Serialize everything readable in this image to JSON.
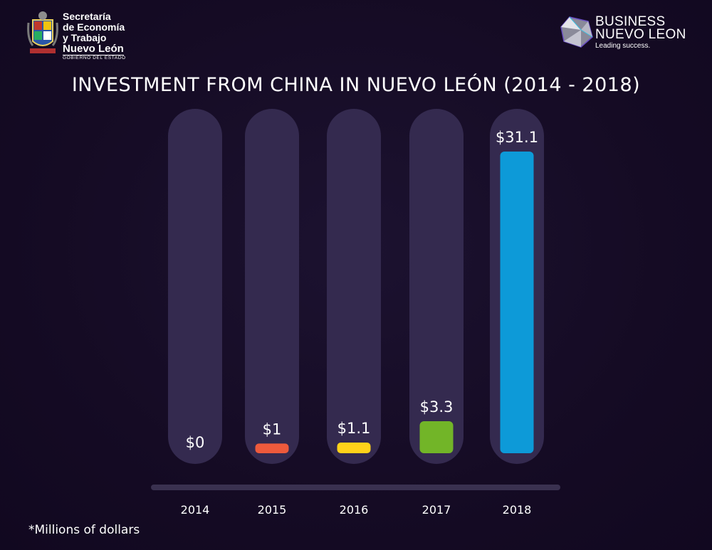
{
  "header": {
    "left_logo": {
      "line1": "Secretaría",
      "line2": "de Economía",
      "line3": "y Trabajo",
      "line4": "Nuevo León",
      "line5": "GOBIERNO DEL ESTADO"
    },
    "right_logo": {
      "line1": "BUSINESS",
      "line2": "NUEVO LEON",
      "tagline": "Leading success."
    }
  },
  "footnote": "*Millions of dollars",
  "colors": {
    "background": "#150b24",
    "track": "#342a4f",
    "baseline": "#3a3150",
    "bars": [
      "#ee5a3c",
      "#ee5a3c",
      "#ffd21a",
      "#72b528",
      "#0d9ad8"
    ]
  },
  "chart_data": {
    "type": "bar",
    "title": "INVESTMENT FROM CHINA IN NUEVO LEÓN (2014 - 2018)",
    "categories": [
      "2014",
      "2015",
      "2016",
      "2017",
      "2018"
    ],
    "values": [
      0,
      1,
      1.1,
      3.3,
      31.1
    ],
    "data_labels": [
      "$0",
      "$1",
      "$1.1",
      "$3.3",
      "$31.1"
    ],
    "unit": "Millions of dollars",
    "xlabel": "",
    "ylabel": "",
    "ylim": [
      0,
      31.1
    ],
    "grid": false,
    "legend": "none"
  }
}
